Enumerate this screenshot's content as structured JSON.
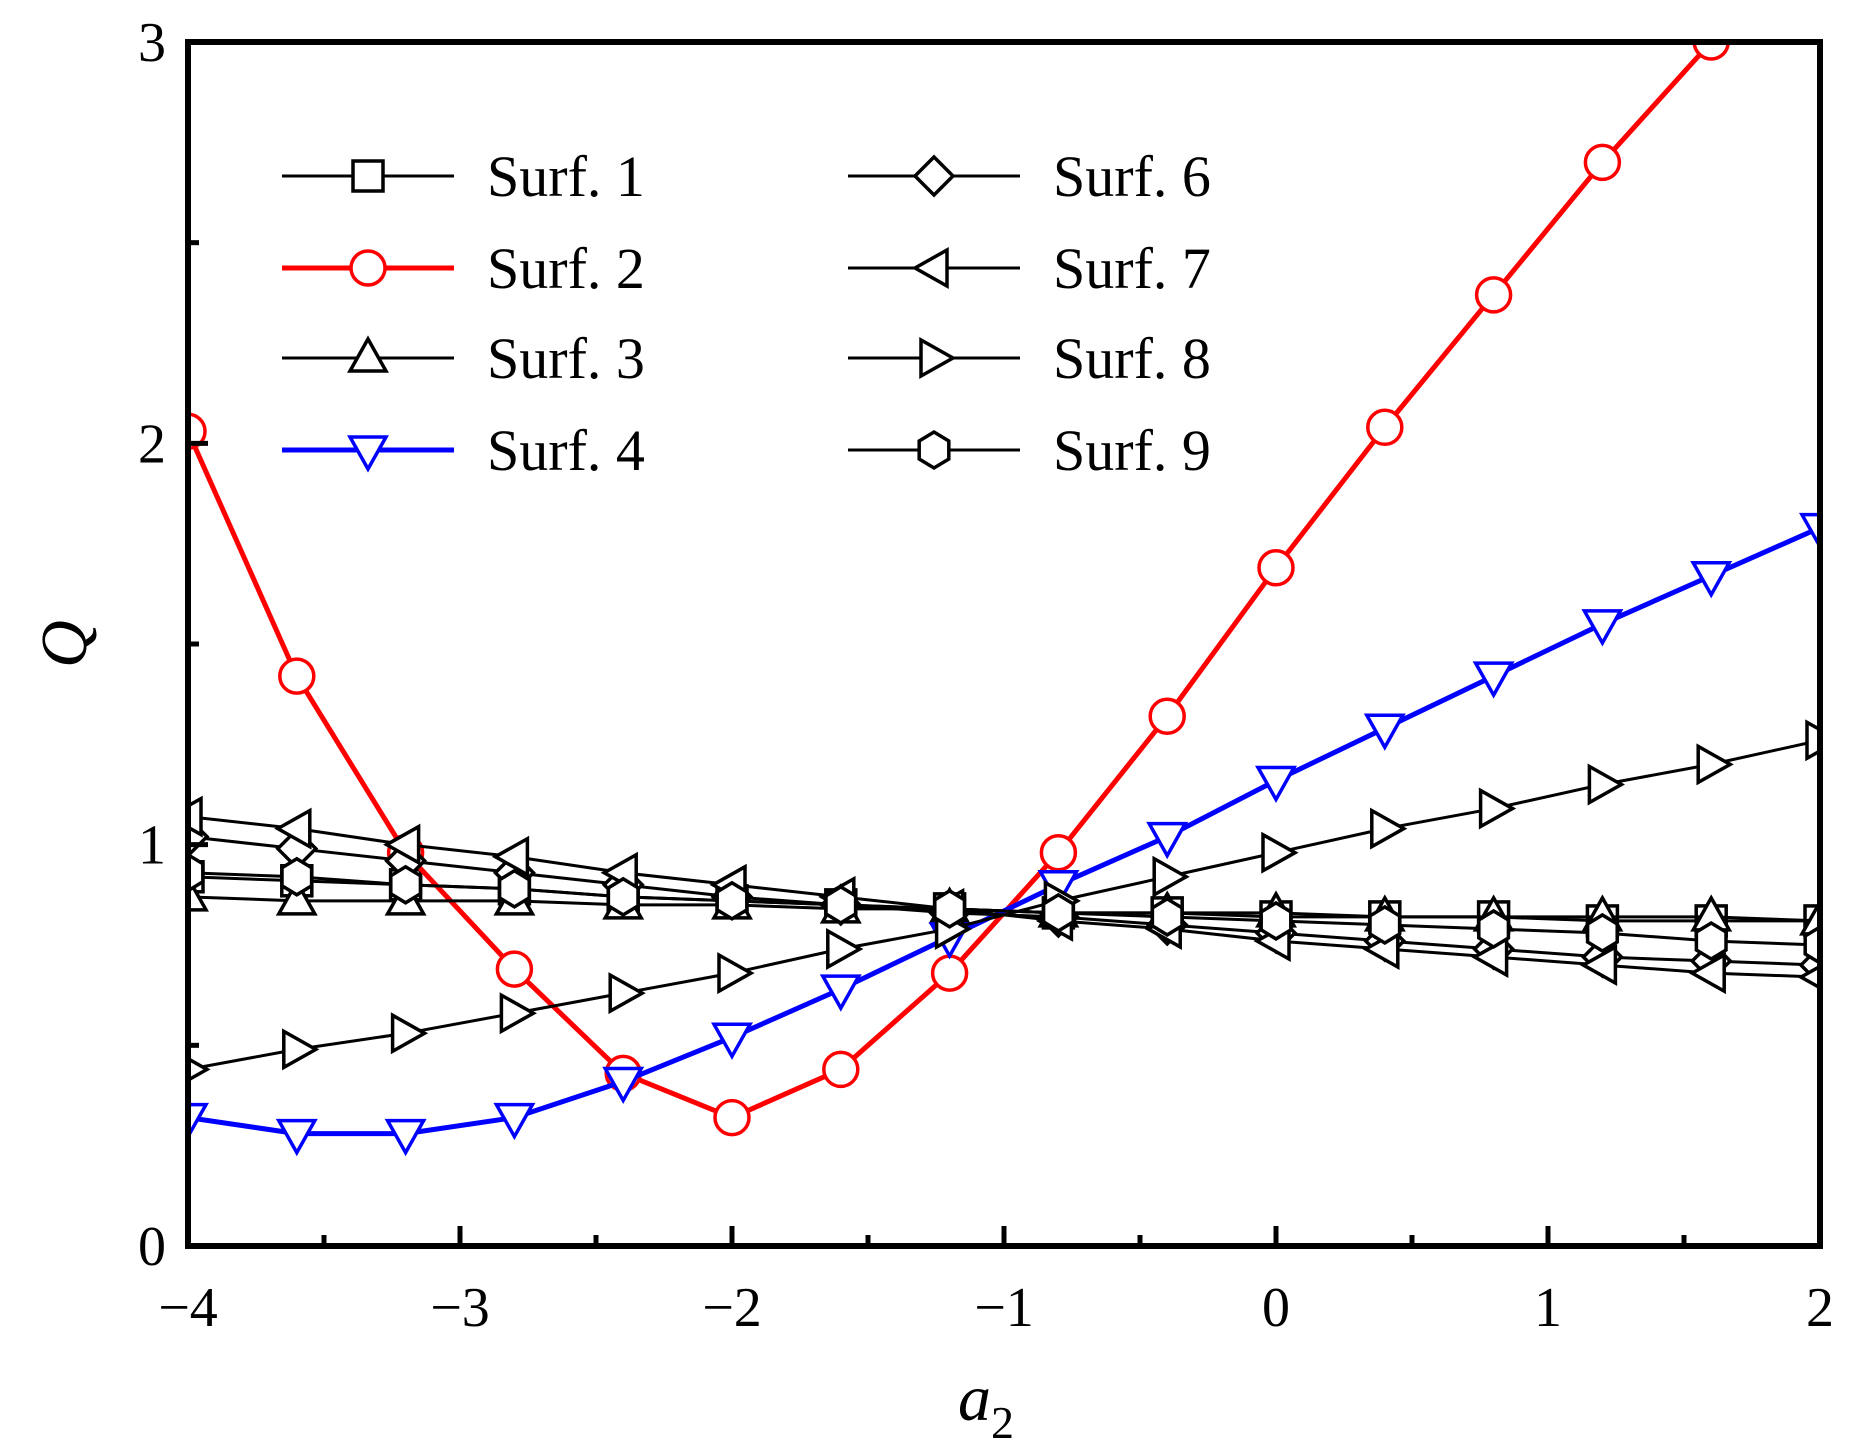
{
  "chart_data": {
    "type": "line",
    "title": "",
    "xlabel": "a",
    "xlabel_subscript": "2",
    "ylabel": "Q",
    "xlim": [
      -4,
      2
    ],
    "ylim": [
      0,
      3
    ],
    "xticks": [
      -4,
      -3,
      -2,
      -1,
      0,
      1,
      2
    ],
    "xtick_labels": [
      "−4",
      "−3",
      "−2",
      "−1",
      "0",
      "1",
      "2"
    ],
    "yticks": [
      0,
      1,
      2,
      3
    ],
    "ytick_labels": [
      "0",
      "1",
      "2",
      "3"
    ],
    "grid": false,
    "legend_position": "top-left",
    "x": [
      -4,
      -3.6,
      -3.2,
      -2.8,
      -2.4,
      -2.0,
      -1.6,
      -1.2,
      -0.8,
      -0.4,
      0,
      0.4,
      0.8,
      1.2,
      1.6,
      2.0
    ],
    "series": [
      {
        "name": "Surf. 1",
        "color": "#000000",
        "marker": "square",
        "values": [
          0.92,
          0.91,
          0.9,
          0.89,
          0.87,
          0.86,
          0.85,
          0.84,
          0.83,
          0.83,
          0.82,
          0.82,
          0.82,
          0.81,
          0.81,
          0.81
        ]
      },
      {
        "name": "Surf. 2",
        "color": "#ff0000",
        "marker": "circle",
        "values": [
          2.03,
          1.42,
          0.98,
          0.69,
          0.43,
          0.32,
          0.44,
          0.68,
          0.98,
          1.32,
          1.69,
          2.04,
          2.37,
          2.7,
          3.0,
          null
        ]
      },
      {
        "name": "Surf. 3",
        "color": "#000000",
        "marker": "triangle-up",
        "values": [
          0.87,
          0.86,
          0.86,
          0.86,
          0.85,
          0.85,
          0.84,
          0.84,
          0.83,
          0.83,
          0.83,
          0.82,
          0.82,
          0.82,
          0.82,
          0.81
        ]
      },
      {
        "name": "Surf. 4",
        "color": "#0000ff",
        "marker": "triangle-down",
        "values": [
          0.32,
          0.28,
          0.28,
          0.32,
          0.41,
          0.52,
          0.64,
          0.77,
          0.9,
          1.02,
          1.16,
          1.29,
          1.42,
          1.55,
          1.67,
          1.79
        ]
      },
      {
        "name": "Surf. 6",
        "color": "#000000",
        "marker": "diamond",
        "values": [
          1.02,
          0.99,
          0.96,
          0.93,
          0.9,
          0.87,
          0.85,
          0.83,
          0.82,
          0.8,
          0.78,
          0.76,
          0.74,
          0.72,
          0.71,
          0.7
        ]
      },
      {
        "name": "Surf. 7",
        "color": "#000000",
        "marker": "triangle-left",
        "values": [
          1.07,
          1.04,
          1.0,
          0.97,
          0.93,
          0.9,
          0.87,
          0.84,
          0.81,
          0.79,
          0.76,
          0.74,
          0.72,
          0.7,
          0.68,
          0.67
        ]
      },
      {
        "name": "Surf. 8",
        "color": "#000000",
        "marker": "triangle-right",
        "values": [
          0.44,
          0.49,
          0.53,
          0.58,
          0.63,
          0.68,
          0.74,
          0.79,
          0.86,
          0.92,
          0.98,
          1.04,
          1.09,
          1.15,
          1.2,
          1.26
        ]
      },
      {
        "name": "Surf. 9",
        "color": "#000000",
        "marker": "hexagon",
        "values": [
          0.93,
          0.92,
          0.9,
          0.89,
          0.87,
          0.86,
          0.85,
          0.84,
          0.83,
          0.82,
          0.81,
          0.8,
          0.79,
          0.78,
          0.76,
          0.75
        ]
      }
    ]
  }
}
